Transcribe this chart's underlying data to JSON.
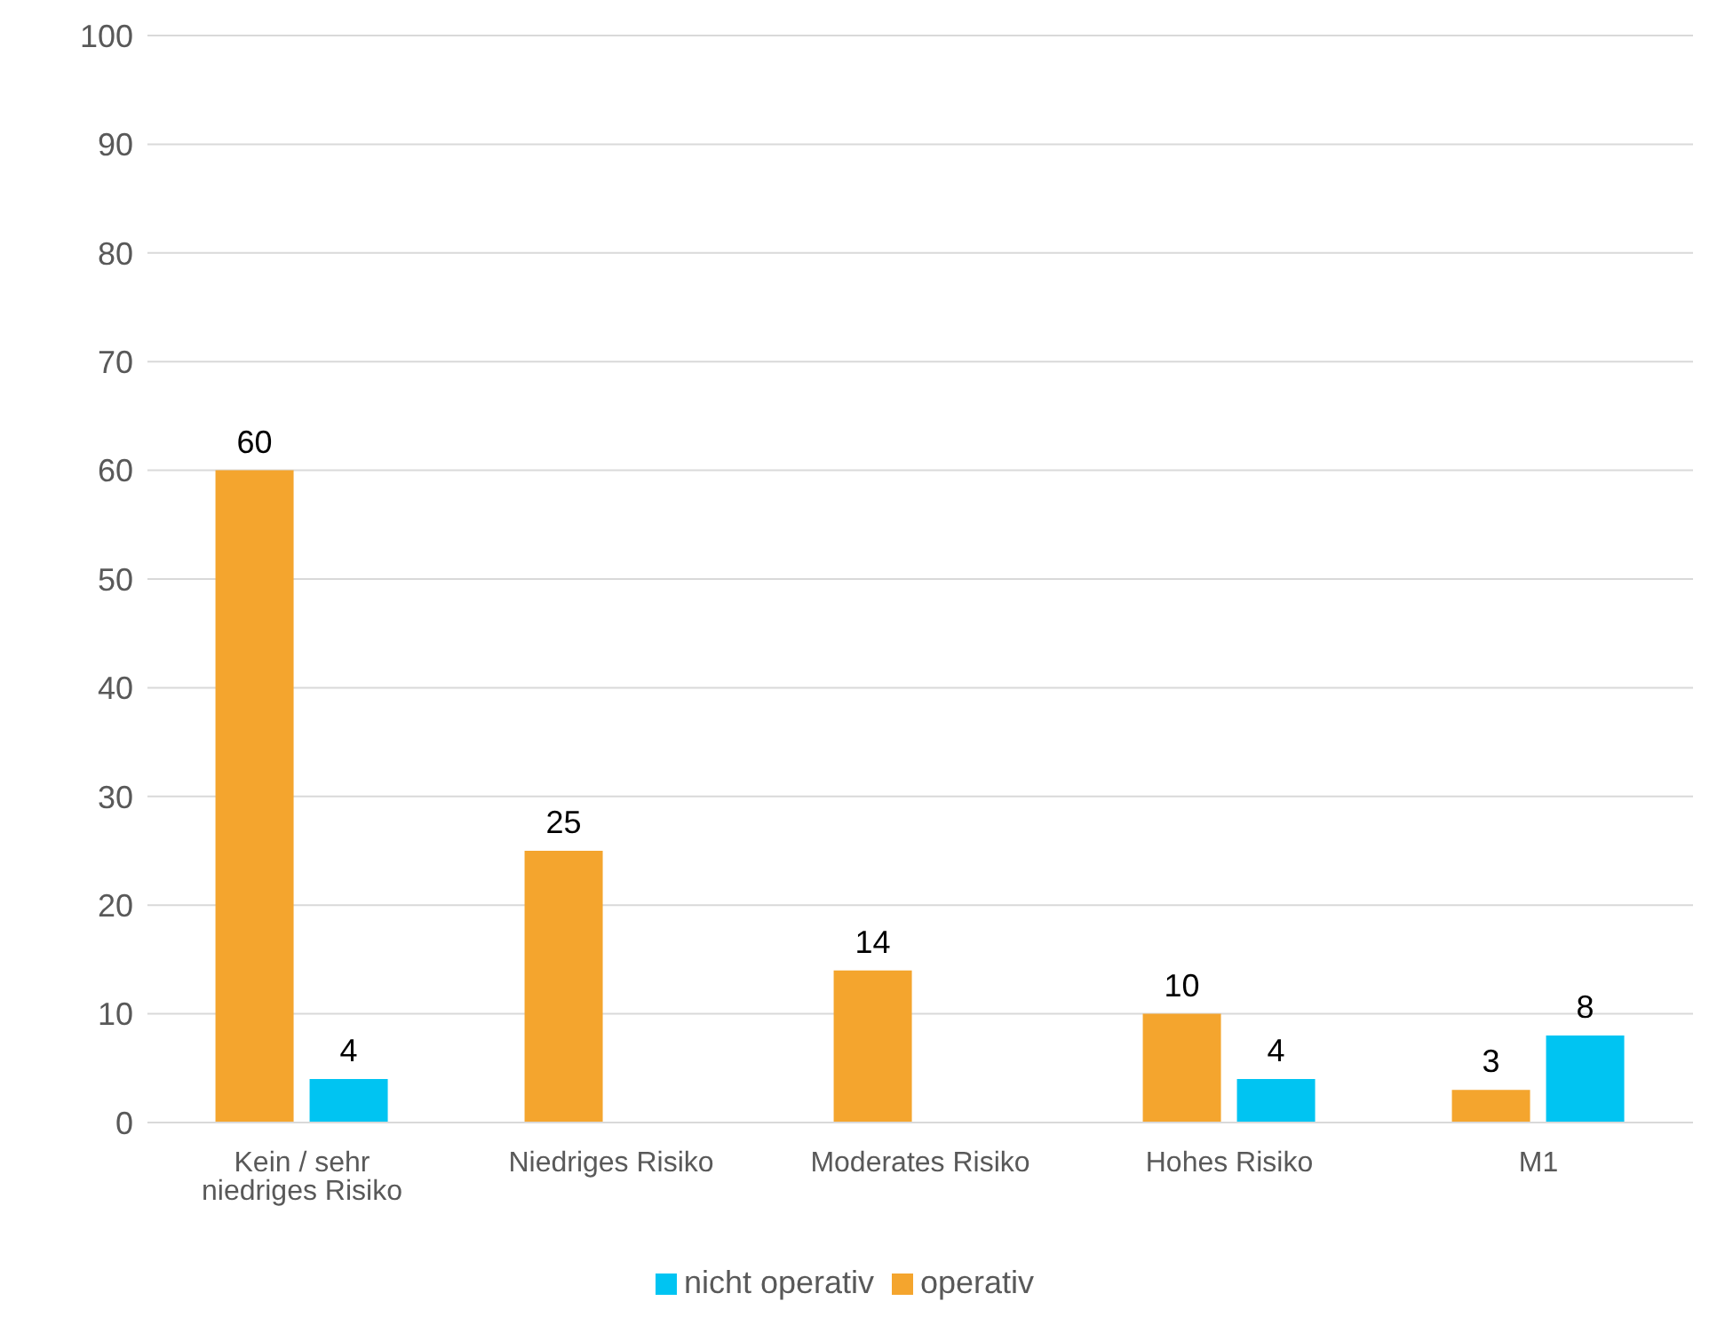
{
  "chart_data": {
    "type": "bar",
    "categories": [
      "Kein / sehr niedriges Risiko",
      "Niedriges Risiko",
      "Moderates Risiko",
      "Hohes Risiko",
      "M1"
    ],
    "series": [
      {
        "name": "operativ",
        "color": "#f4a52e",
        "values": [
          60,
          25,
          14,
          10,
          3
        ]
      },
      {
        "name": "nicht operativ",
        "color": "#00c4f2",
        "values": [
          4,
          null,
          null,
          4,
          8
        ]
      }
    ],
    "ylim": [
      0,
      100
    ],
    "yticks": [
      0,
      10,
      20,
      30,
      40,
      50,
      60,
      70,
      80,
      90,
      100
    ],
    "grid": "y",
    "legend": "bottom",
    "data_labels": true
  }
}
